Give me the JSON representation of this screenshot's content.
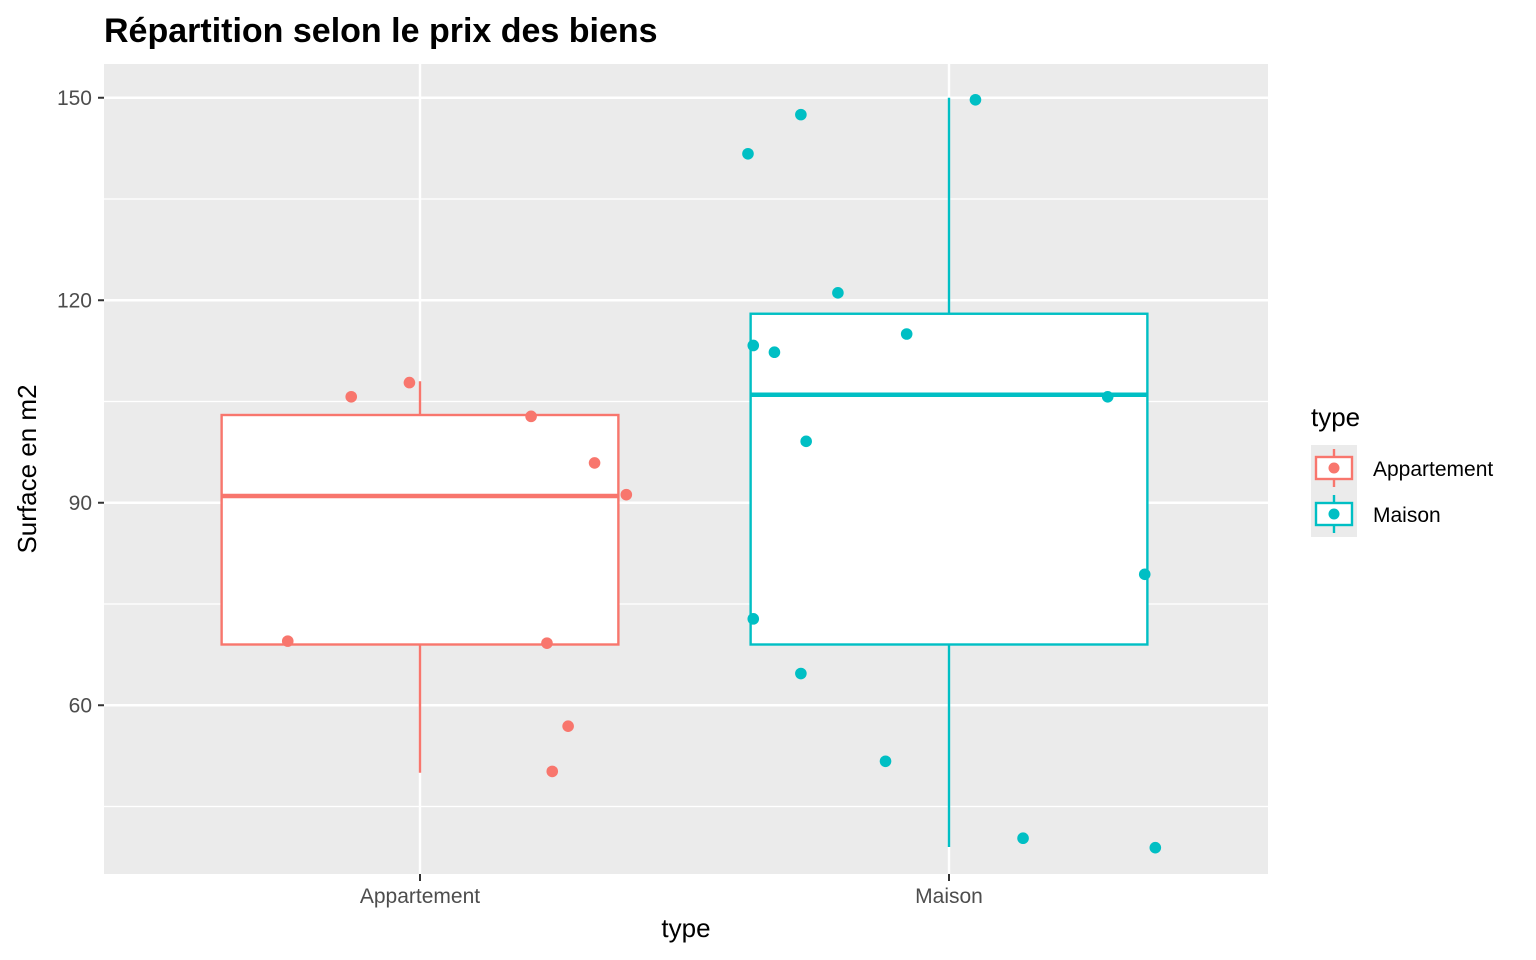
{
  "chart_data": {
    "type": "boxplot",
    "title": "Répartition selon le prix des biens",
    "xlabel": "type",
    "ylabel": "Surface en m2",
    "ylim": [
      35,
      155
    ],
    "yticks": [
      60,
      90,
      120,
      150
    ],
    "yminor": [
      45,
      75,
      105,
      135
    ],
    "categories": [
      "Appartement",
      "Maison"
    ],
    "grid": true,
    "legend": {
      "title": "type",
      "placement": "right",
      "entries": [
        "Appartement",
        "Maison"
      ]
    },
    "series": [
      {
        "name": "Appartement",
        "color": "#f8766d",
        "box": {
          "min": 50,
          "q1": 69,
          "median": 91,
          "q3": 103,
          "max": 108
        },
        "points": [
          {
            "offset": -0.25,
            "y": 69.5
          },
          {
            "offset": -0.13,
            "y": 105.7
          },
          {
            "offset": -0.02,
            "y": 107.8
          },
          {
            "offset": 0.21,
            "y": 102.8
          },
          {
            "offset": 0.24,
            "y": 69.2
          },
          {
            "offset": 0.25,
            "y": 50.2
          },
          {
            "offset": 0.28,
            "y": 56.9
          },
          {
            "offset": 0.33,
            "y": 95.9
          },
          {
            "offset": 0.39,
            "y": 91.2
          }
        ]
      },
      {
        "name": "Maison",
        "color": "#00bfc4",
        "box": {
          "min": 39,
          "q1": 69,
          "median": 106,
          "q3": 118,
          "max": 150
        },
        "points": [
          {
            "offset": -0.38,
            "y": 141.7
          },
          {
            "offset": -0.37,
            "y": 113.3
          },
          {
            "offset": -0.37,
            "y": 72.8
          },
          {
            "offset": -0.33,
            "y": 112.3
          },
          {
            "offset": -0.28,
            "y": 147.5
          },
          {
            "offset": -0.28,
            "y": 64.7
          },
          {
            "offset": -0.27,
            "y": 99.1
          },
          {
            "offset": -0.21,
            "y": 121.1
          },
          {
            "offset": -0.12,
            "y": 51.7
          },
          {
            "offset": -0.08,
            "y": 115.0
          },
          {
            "offset": 0.05,
            "y": 149.7
          },
          {
            "offset": 0.14,
            "y": 40.3
          },
          {
            "offset": 0.3,
            "y": 105.7
          },
          {
            "offset": 0.37,
            "y": 79.4
          },
          {
            "offset": 0.39,
            "y": 38.9
          }
        ]
      }
    ]
  }
}
